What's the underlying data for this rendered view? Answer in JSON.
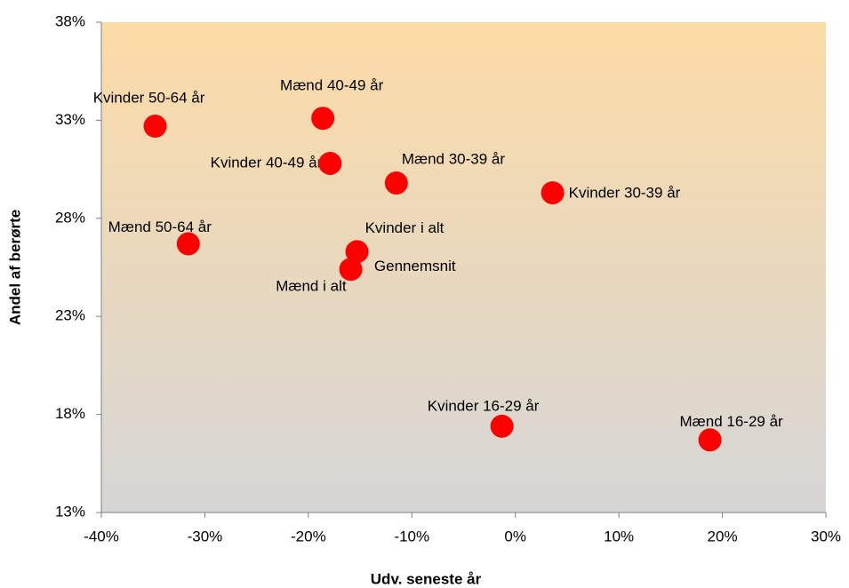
{
  "chart_data": {
    "type": "scatter",
    "x_label": "Udv. seneste år",
    "y_label": "Andel af berørte",
    "points": [
      {
        "label": "Gennemsnit",
        "x": -15.7,
        "y": 25.8,
        "color": "#1f2fd0"
      },
      {
        "label": "Kvinder 50-64 år",
        "x": -34.8,
        "y": 32.7,
        "color": "#ff0000"
      },
      {
        "label": "Mænd 40-49 år",
        "x": -18.6,
        "y": 33.1,
        "color": "#ff0000"
      },
      {
        "label": "Kvinder 40-49 år",
        "x": -17.9,
        "y": 30.8,
        "color": "#ff0000"
      },
      {
        "label": "Mænd 30-39 år",
        "x": -11.5,
        "y": 29.8,
        "color": "#ff0000"
      },
      {
        "label": "Kvinder 30-39 år",
        "x": 3.6,
        "y": 29.3,
        "color": "#ff0000"
      },
      {
        "label": "Mænd 50-64 år",
        "x": -31.6,
        "y": 26.7,
        "color": "#ff0000"
      },
      {
        "label": "Kvinder i alt",
        "x": -15.3,
        "y": 26.3,
        "color": "#ff0000"
      },
      {
        "label": "Mænd i alt",
        "x": -15.9,
        "y": 25.4,
        "color": "#ff0000"
      },
      {
        "label": "Kvinder 16-29 år",
        "x": -1.3,
        "y": 17.4,
        "color": "#ff0000"
      },
      {
        "label": "Mænd 16-29 år",
        "x": 18.8,
        "y": 16.7,
        "color": "#ff0000"
      }
    ],
    "xlim": [
      -40,
      30
    ],
    "xticks": [
      {
        "value": -40,
        "label": "-40%"
      },
      {
        "value": -30,
        "label": "-30%"
      },
      {
        "value": -20,
        "label": "-20%"
      },
      {
        "value": -10,
        "label": "-10%"
      },
      {
        "value": 0,
        "label": "0%"
      },
      {
        "value": 10,
        "label": "10%"
      },
      {
        "value": 20,
        "label": "20%"
      },
      {
        "value": 30,
        "label": "30%"
      }
    ],
    "ylim": [
      13,
      38
    ],
    "yticks": [
      {
        "value": 13,
        "label": "13%"
      },
      {
        "value": 18,
        "label": "18%"
      },
      {
        "value": 23,
        "label": "23%"
      },
      {
        "value": 28,
        "label": "28%"
      },
      {
        "value": 33,
        "label": "33%"
      },
      {
        "value": 38,
        "label": "38%"
      }
    ]
  }
}
